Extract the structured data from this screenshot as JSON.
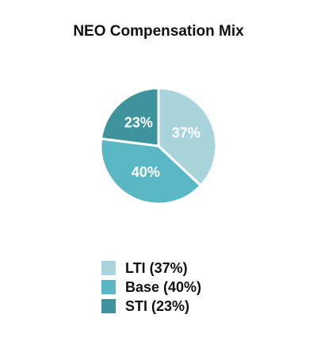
{
  "chart_data": {
    "type": "pie",
    "title": "NEO Compensation Mix",
    "categories": [
      "LTI (37%)",
      "Base (40%)",
      "STI (23%)"
    ],
    "values": [
      37,
      40,
      23
    ],
    "value_labels": [
      "37%",
      "40%",
      "23%"
    ],
    "colors": [
      "#a9d4dc",
      "#5ab8c4",
      "#3f939c"
    ],
    "legend": "bottom"
  }
}
